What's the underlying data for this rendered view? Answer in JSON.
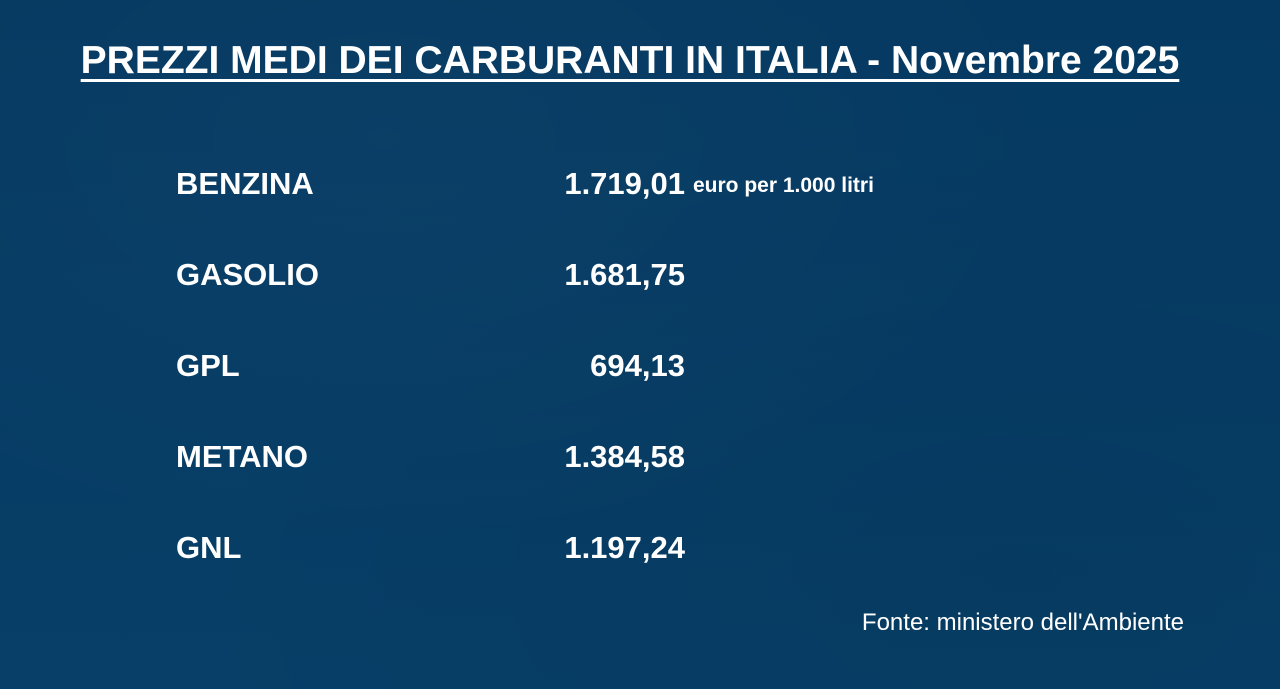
{
  "title": "PREZZI MEDI DEI CARBURANTI IN ITALIA - Novembre 2025",
  "unit": "euro per 1.000 litri",
  "prices": [
    {
      "fuel": "BENZINA",
      "value": "1.719,01"
    },
    {
      "fuel": "GASOLIO",
      "value": "1.681,75"
    },
    {
      "fuel": "GPL",
      "value": "694,13"
    },
    {
      "fuel": "METANO",
      "value": "1.384,58"
    },
    {
      "fuel": "GNL",
      "value": "1.197,24"
    }
  ],
  "source": "Fonte: ministero dell'Ambiente",
  "colors": {
    "background": "#053a64",
    "text": "#ffffff"
  }
}
